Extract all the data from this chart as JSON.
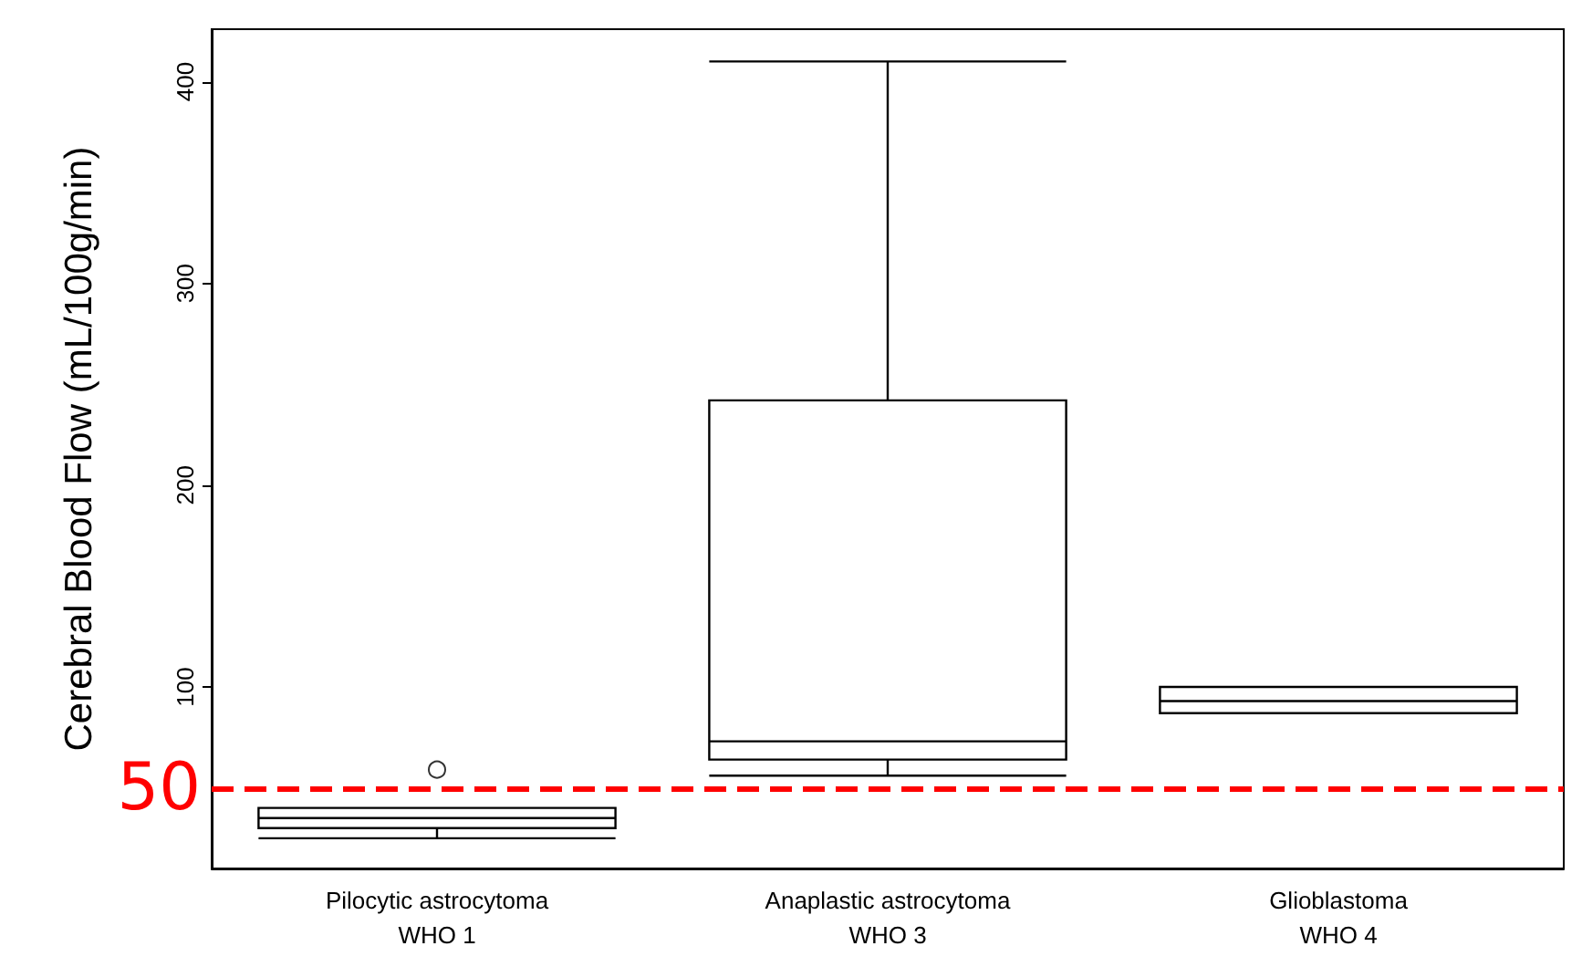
{
  "chart_data": {
    "type": "box",
    "ylabel": "Cerebral Blood Flow (mL/100g/min)",
    "categories": [
      "Pilocytic astrocytoma\nWHO 1",
      "Anaplastic astrocytoma\nWHO 3",
      "Glioblastoma\nWHO 4"
    ],
    "boxes": [
      {
        "low": 25,
        "q1": 30,
        "median": 35,
        "q3": 40,
        "high": 40,
        "outliers": [
          59
        ]
      },
      {
        "low": 56,
        "q1": 64,
        "median": 73,
        "q3": 242,
        "high": 410
      },
      {
        "low": 87,
        "q1": 87,
        "median": 93,
        "q3": 100,
        "high": 100
      }
    ],
    "ylim": [
      10,
      426
    ],
    "yticks": [
      100,
      200,
      300,
      400
    ],
    "ref_lines": [
      {
        "axis": "y",
        "value": 50,
        "label": "50",
        "color": "#ff0000",
        "line_style": "dashed"
      }
    ],
    "grid": false
  }
}
